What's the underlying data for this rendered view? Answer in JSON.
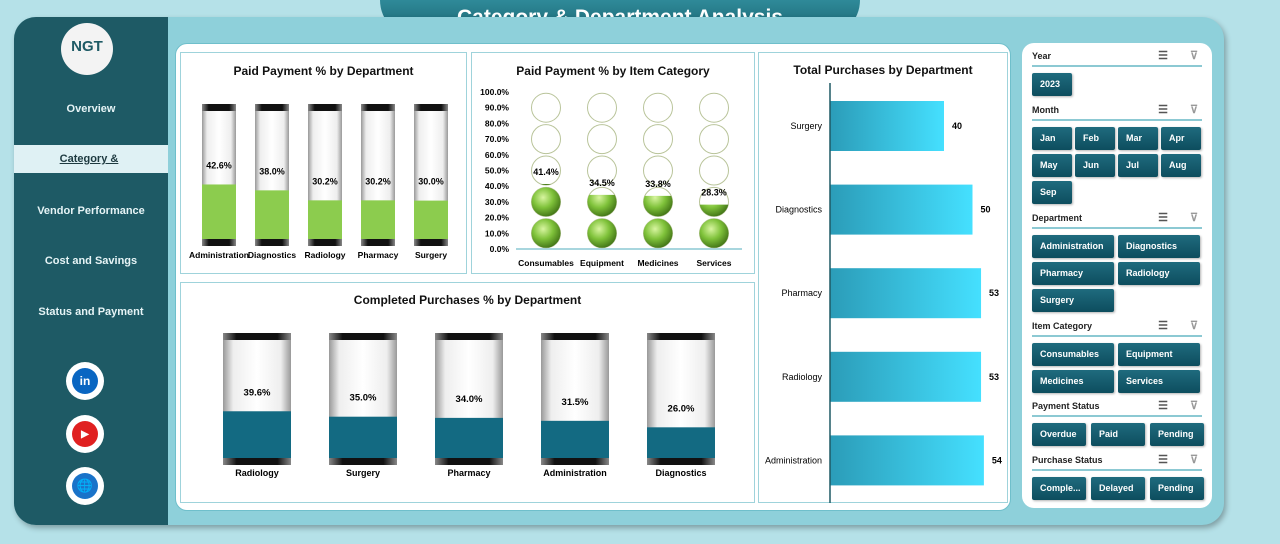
{
  "title": "Category & Department Analysis",
  "logo": "NGT",
  "nav": [
    "Overview",
    "Category &",
    "Vendor Performance",
    "Cost and Savings",
    "Status and Payment"
  ],
  "social": [
    "in",
    "▶",
    "🌐"
  ],
  "colors": {
    "green": "#8ccc4e",
    "teal": "#136a82",
    "bar": "#3fd8f5"
  },
  "chart_data": [
    {
      "type": "bar",
      "title": "Paid Payment % by Department",
      "categories": [
        "Administration",
        "Diagnostics",
        "Radiology",
        "Pharmacy",
        "Surgery"
      ],
      "values": [
        42.6,
        38.0,
        30.2,
        30.2,
        30.0
      ],
      "labels": [
        "42.6%",
        "38.0%",
        "30.2%",
        "30.2%",
        "30.0%"
      ],
      "ylim": [
        0,
        100
      ]
    },
    {
      "type": "bar",
      "title": "Paid Payment % by Item Category",
      "categories": [
        "Consumables",
        "Equipment",
        "Medicines",
        "Services"
      ],
      "values": [
        41.4,
        34.5,
        33.8,
        28.3
      ],
      "labels": [
        "41.4%",
        "34.5%",
        "33.8%",
        "28.3%"
      ],
      "yticks": [
        "0.0%",
        "10.0%",
        "20.0%",
        "30.0%",
        "40.0%",
        "50.0%",
        "60.0%",
        "70.0%",
        "80.0%",
        "90.0%",
        "100.0%"
      ],
      "ylim": [
        0,
        100
      ]
    },
    {
      "type": "bar",
      "title": "Completed Purchases % by Department",
      "categories": [
        "Radiology",
        "Surgery",
        "Pharmacy",
        "Administration",
        "Diagnostics"
      ],
      "values": [
        39.6,
        35.0,
        34.0,
        31.5,
        26.0
      ],
      "labels": [
        "39.6%",
        "35.0%",
        "34.0%",
        "31.5%",
        "26.0%"
      ],
      "ylim": [
        0,
        100
      ]
    },
    {
      "type": "bar",
      "orientation": "horizontal",
      "title": "Total Purchases by Department",
      "categories": [
        "Surgery",
        "Diagnostics",
        "Pharmacy",
        "Radiology",
        "Administration"
      ],
      "values": [
        40,
        50,
        53,
        53,
        54
      ],
      "labels": [
        "40",
        "50",
        "53",
        "53",
        "54"
      ],
      "xlim": [
        0,
        60
      ]
    }
  ],
  "filters": [
    {
      "title": "Year",
      "items": [
        "2023"
      ],
      "cols": 4
    },
    {
      "title": "Month",
      "items": [
        "Jan",
        "Feb",
        "Mar",
        "Apr",
        "May",
        "Jun",
        "Jul",
        "Aug",
        "Sep"
      ],
      "cols": 4
    },
    {
      "title": "Department",
      "items": [
        "Administration",
        "Diagnostics",
        "Pharmacy",
        "Radiology",
        "Surgery"
      ],
      "cols": 2
    },
    {
      "title": "Item Category",
      "items": [
        "Consumables",
        "Equipment",
        "Medicines",
        "Services"
      ],
      "cols": 2
    },
    {
      "title": "Payment Status",
      "items": [
        "Overdue",
        "Paid",
        "Pending"
      ],
      "cols": 3
    },
    {
      "title": "Purchase Status",
      "items": [
        "Comple...",
        "Delayed",
        "Pending"
      ],
      "cols": 3
    }
  ],
  "filter_icons": {
    "multi": "☰",
    "clear": "⊽"
  }
}
